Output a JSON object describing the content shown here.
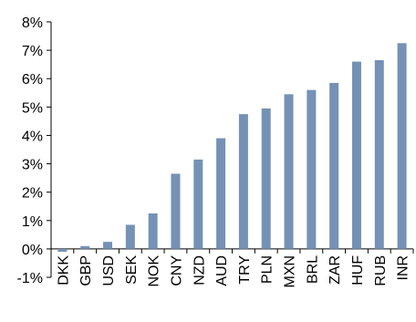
{
  "chart_data": {
    "type": "bar",
    "title": "",
    "xlabel": "",
    "ylabel": "",
    "categories": [
      "DKK",
      "GBP",
      "USD",
      "SEK",
      "NOK",
      "CNY",
      "NZD",
      "AUD",
      "TRY",
      "PLN",
      "MXN",
      "BRL",
      "ZAR",
      "HUF",
      "RUB",
      "INR"
    ],
    "values": [
      -0.1,
      0.1,
      0.25,
      0.85,
      1.25,
      2.65,
      3.15,
      3.9,
      4.75,
      4.95,
      5.45,
      5.6,
      5.85,
      6.6,
      6.65,
      7.25
    ],
    "ylim": [
      -1,
      8
    ],
    "yticks": [
      -1,
      0,
      1,
      2,
      3,
      4,
      5,
      6,
      7,
      8
    ],
    "ytick_labels": [
      "-1%",
      "0%",
      "1%",
      "2%",
      "3%",
      "4%",
      "5%",
      "6%",
      "7%",
      "8%"
    ],
    "grid": false,
    "bar_color": "#7592b6",
    "axis_color": "#000000"
  }
}
